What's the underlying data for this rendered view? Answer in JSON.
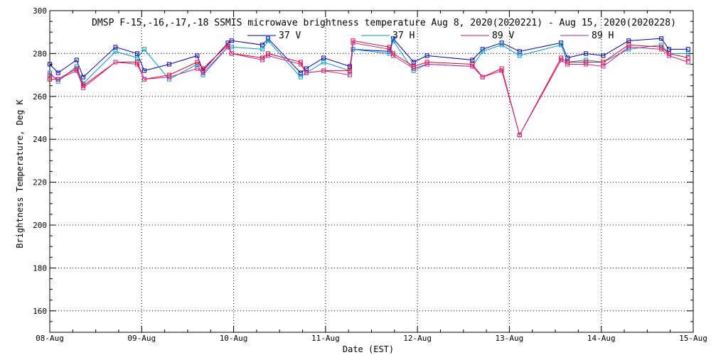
{
  "chart_data": {
    "type": "line",
    "title": "DMSP F-15,-16,-17,-18 SSMIS microwave brightness temperature Aug  8, 2020(2020221) - Aug 15, 2020(2020228)",
    "xlabel": "Date (EST)",
    "ylabel": "Brightness Temperature, Deg K",
    "xlim": [
      "2020-08-08T00:00",
      "2020-08-15T00:00"
    ],
    "ylim": [
      150,
      300
    ],
    "x_tick_labels": [
      "08-Aug",
      "09-Aug",
      "10-Aug",
      "11-Aug",
      "12-Aug",
      "13-Aug",
      "14-Aug",
      "15-Aug"
    ],
    "y_ticks": [
      160,
      180,
      200,
      220,
      240,
      260,
      280,
      300
    ],
    "grid": true,
    "legend_position": "top-center",
    "x": [
      "2020-08-08T00:00",
      "2020-08-08T02:10",
      "2020-08-08T07:00",
      "2020-08-08T08:45",
      "2020-08-08T17:10",
      "2020-08-08T22:50",
      "2020-08-09T00:40",
      "2020-08-09T07:10",
      "2020-08-09T14:30",
      "2020-08-09T16:00",
      "2020-08-09T22:30",
      "2020-08-09T23:30",
      "2020-08-10T07:30",
      "2020-08-10T09:00",
      "2020-08-10T17:30",
      "2020-08-10T19:00",
      "2020-08-10T23:30",
      "2020-08-11T06:20",
      "2020-08-11T07:10",
      "2020-08-11T16:40",
      "2020-08-11T17:40",
      "2020-08-11T23:00",
      "2020-08-12T02:30",
      "2020-08-12T14:20",
      "2020-08-12T17:00",
      "2020-08-12T22:00",
      "2020-08-13T02:40",
      "2020-08-13T13:30",
      "2020-08-13T15:10",
      "2020-08-13T20:00",
      "2020-08-14T00:30",
      "2020-08-14T07:10",
      "2020-08-14T15:40",
      "2020-08-14T17:40",
      "2020-08-14T22:40"
    ],
    "series": [
      {
        "name": "37 V",
        "color": "#0000aa",
        "values": [
          275,
          271,
          277,
          269,
          283,
          280,
          272,
          275,
          279,
          272,
          285,
          286,
          284,
          287,
          271,
          273,
          278,
          274,
          282,
          281,
          287,
          276,
          279,
          277,
          282,
          285,
          281,
          285,
          278,
          280,
          279,
          286,
          287,
          282,
          282
        ]
      },
      {
        "name": "37 H",
        "color": "#0099cc",
        "values": [
          271,
          267,
          274,
          266,
          281,
          278,
          282,
          268,
          275,
          270,
          283,
          283,
          282,
          286,
          269,
          271,
          276,
          272,
          282,
          280,
          286,
          272,
          275,
          274,
          281,
          284,
          279,
          284,
          276,
          277,
          276,
          282,
          284,
          280,
          280
        ]
      },
      {
        "name": "89 V",
        "color": "#e8002a",
        "values": [
          268,
          268,
          273,
          265,
          276,
          276,
          268,
          270,
          276,
          273,
          284,
          280,
          278,
          280,
          276,
          271,
          272,
          272,
          286,
          283,
          280,
          274,
          276,
          275,
          269,
          273,
          242,
          278,
          276,
          276,
          276,
          284,
          283,
          280,
          278
        ]
      },
      {
        "name": "89 H",
        "color": "#cc2288",
        "values": [
          270,
          268,
          272,
          264,
          276,
          275,
          268,
          269,
          273,
          271,
          283,
          280,
          277,
          279,
          275,
          271,
          272,
          270,
          285,
          282,
          279,
          273,
          275,
          274,
          269,
          272,
          242,
          277,
          275,
          275,
          274,
          283,
          282,
          279,
          276
        ]
      }
    ]
  }
}
